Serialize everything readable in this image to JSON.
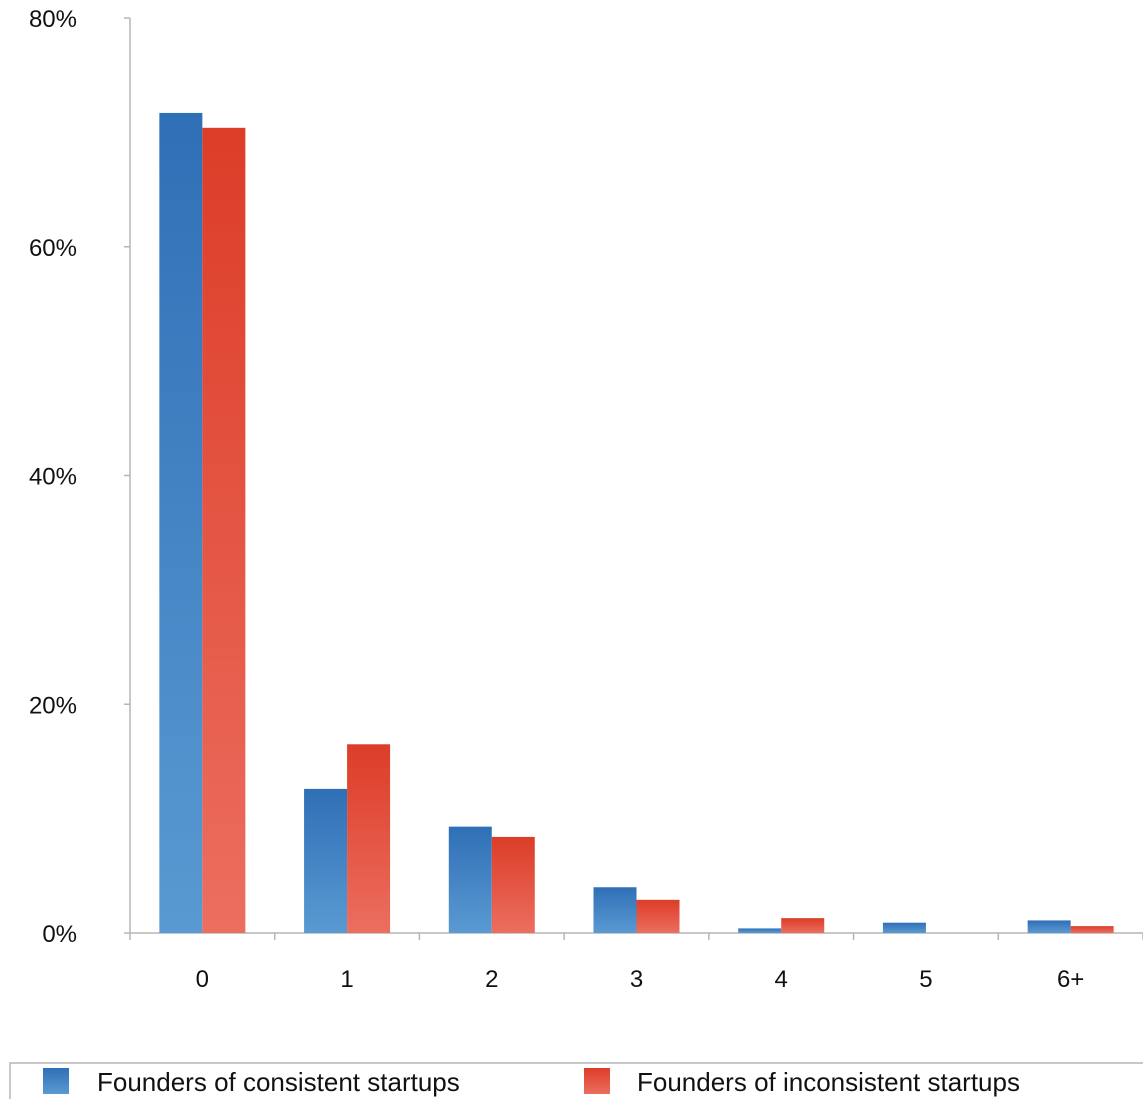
{
  "chart_data": {
    "type": "bar",
    "categories": [
      "0",
      "1",
      "2",
      "3",
      "4",
      "5",
      "6+"
    ],
    "series": [
      {
        "name": "Founders of consistent startups",
        "color": "#3b80c4",
        "values": [
          71.7,
          12.6,
          9.3,
          4.0,
          0.4,
          0.9,
          1.1
        ]
      },
      {
        "name": "Founders of inconsistent startups",
        "color": "#e0473a",
        "values": [
          70.4,
          16.5,
          8.4,
          2.9,
          1.3,
          0.0,
          0.6
        ]
      }
    ],
    "y_tick_labels": [
      "0%",
      "20%",
      "40%",
      "60%",
      "80%"
    ],
    "y_ticks": [
      0,
      20,
      40,
      60,
      80
    ],
    "ylim": [
      0,
      80
    ],
    "grid": false,
    "legend_position": "bottom"
  }
}
